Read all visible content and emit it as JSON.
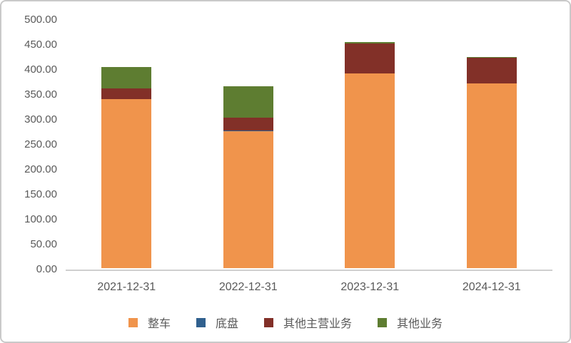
{
  "chart_data": {
    "type": "bar",
    "stacked": true,
    "title": "",
    "xlabel": "",
    "ylabel": "",
    "categories": [
      "2021-12-31",
      "2022-12-31",
      "2023-12-31",
      "2024-12-31"
    ],
    "series": [
      {
        "name": "整车",
        "color": "#F0944C",
        "values": [
          338,
          275,
          390,
          370
        ]
      },
      {
        "name": "底盘",
        "color": "#30608E",
        "values": [
          0.5,
          0.5,
          0.5,
          0.5
        ]
      },
      {
        "name": "其他主营业务",
        "color": "#823028",
        "values": [
          22,
          26,
          60,
          51
        ]
      },
      {
        "name": "其他业务",
        "color": "#5E7D31",
        "values": [
          43,
          63,
          2,
          2
        ]
      }
    ],
    "ylim": [
      0,
      500
    ],
    "y_tick_step": 50,
    "y_ticks": [
      "0.00",
      "50.00",
      "100.00",
      "150.00",
      "200.00",
      "250.00",
      "300.00",
      "350.00",
      "400.00",
      "450.00",
      "500.00"
    ],
    "grid": false,
    "legend_position": "bottom"
  },
  "style": {
    "axis_line_color": "#cfcfcf",
    "label_color": "#595959",
    "frame_border_color": "#c9c9c9",
    "background": "#ffffff"
  }
}
